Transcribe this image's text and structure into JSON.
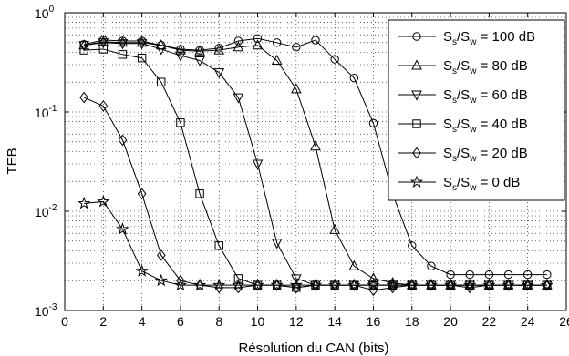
{
  "chart_data": {
    "type": "line",
    "title": "",
    "xlabel": "Résolution du CAN (bits)",
    "ylabel": "TEB",
    "xlim": [
      0,
      26
    ],
    "ylim": [
      0.001,
      1
    ],
    "yscale": "log",
    "grid": true,
    "legend_position": "top-right",
    "x_ticks": [
      "0",
      "2",
      "4",
      "6",
      "8",
      "10",
      "12",
      "14",
      "16",
      "18",
      "20",
      "22",
      "24",
      "26"
    ],
    "y_ticks": [
      {
        "base": "10",
        "exp": "0"
      },
      {
        "base": "10",
        "exp": "-1"
      },
      {
        "base": "10",
        "exp": "-2"
      },
      {
        "base": "10",
        "exp": "-3"
      }
    ],
    "series": [
      {
        "marker": "circle",
        "legend": {
          "s": "S",
          "s_sub": "s",
          "w": "S",
          "w_sub": "w",
          "value": " = 100 dB"
        },
        "x": [
          1,
          2,
          3,
          4,
          5,
          6,
          7,
          8,
          9,
          10,
          11,
          12,
          13,
          14,
          15,
          16,
          17,
          18,
          19,
          20,
          21,
          22,
          23,
          24,
          25
        ],
        "y": [
          0.48,
          0.53,
          0.52,
          0.52,
          0.47,
          0.43,
          0.42,
          0.44,
          0.52,
          0.55,
          0.5,
          0.45,
          0.53,
          0.34,
          0.22,
          0.077,
          0.015,
          0.0045,
          0.0028,
          0.0023,
          0.0023,
          0.0023,
          0.0023,
          0.0023,
          0.0023
        ]
      },
      {
        "marker": "triangle-up",
        "legend": {
          "s": "S",
          "s_sub": "s",
          "w": "S",
          "w_sub": "w",
          "value": " = 80 dB"
        },
        "x": [
          1,
          2,
          3,
          4,
          5,
          6,
          7,
          8,
          9,
          10,
          11,
          12,
          13,
          14,
          15,
          16,
          17,
          18,
          19,
          20,
          21,
          22,
          23,
          24,
          25
        ],
        "y": [
          0.47,
          0.51,
          0.5,
          0.5,
          0.47,
          0.42,
          0.41,
          0.42,
          0.45,
          0.47,
          0.33,
          0.17,
          0.045,
          0.0065,
          0.0028,
          0.0021,
          0.0019,
          0.0018,
          0.0018,
          0.0018,
          0.0018,
          0.0018,
          0.0018,
          0.0018,
          0.0018
        ]
      },
      {
        "marker": "triangle-down",
        "legend": {
          "s": "S",
          "s_sub": "s",
          "w": "S",
          "w_sub": "w",
          "value": " = 60 dB"
        },
        "x": [
          1,
          2,
          3,
          4,
          5,
          6,
          7,
          8,
          9,
          10,
          11,
          12,
          13,
          14,
          15,
          16,
          17,
          18,
          19,
          20,
          21,
          22,
          23,
          24,
          25
        ],
        "y": [
          0.47,
          0.5,
          0.49,
          0.49,
          0.43,
          0.37,
          0.33,
          0.25,
          0.14,
          0.03,
          0.0048,
          0.0021,
          0.0018,
          0.0018,
          0.0018,
          0.0018,
          0.0018,
          0.0018,
          0.0018,
          0.0018,
          0.0018,
          0.0018,
          0.0018,
          0.0018,
          0.0018
        ]
      },
      {
        "marker": "square",
        "legend": {
          "s": "S",
          "s_sub": "s",
          "w": "S",
          "w_sub": "w",
          "value": " = 40 dB"
        },
        "x": [
          1,
          2,
          3,
          4,
          5,
          6,
          7,
          8,
          9,
          10,
          11,
          12,
          13,
          14,
          15,
          16,
          17,
          18,
          19,
          20,
          21,
          22,
          23,
          24,
          25
        ],
        "y": [
          0.42,
          0.43,
          0.38,
          0.35,
          0.2,
          0.078,
          0.015,
          0.0045,
          0.0021,
          0.0018,
          0.0018,
          0.0017,
          0.0018,
          0.0018,
          0.0018,
          0.0018,
          0.0018,
          0.0018,
          0.0018,
          0.0018,
          0.0018,
          0.0018,
          0.0018,
          0.0018,
          0.0018
        ]
      },
      {
        "marker": "diamond",
        "legend": {
          "s": "S",
          "s_sub": "s",
          "w": "S",
          "w_sub": "w",
          "value": " = 20 dB"
        },
        "x": [
          1,
          2,
          3,
          4,
          5,
          6,
          7,
          8,
          9,
          10,
          11,
          12,
          13,
          14,
          15,
          16,
          17,
          18,
          19,
          20,
          21,
          22,
          23,
          24,
          25
        ],
        "y": [
          0.14,
          0.115,
          0.052,
          0.015,
          0.0036,
          0.002,
          0.0018,
          0.0017,
          0.0017,
          0.0018,
          0.0018,
          0.0017,
          0.0018,
          0.0018,
          0.0018,
          0.0016,
          0.0017,
          0.0018,
          0.0018,
          0.0018,
          0.0017,
          0.0018,
          0.0018,
          0.0018,
          0.0018
        ]
      },
      {
        "marker": "star",
        "legend": {
          "s": "S",
          "s_sub": "s",
          "w": "S",
          "w_sub": "w",
          "value": " = 0 dB"
        },
        "x": [
          1,
          2,
          3,
          4,
          5,
          6,
          7,
          8,
          9,
          10,
          11,
          12,
          13,
          14,
          15,
          16,
          17,
          18,
          19,
          20,
          21,
          22,
          23,
          24,
          25
        ],
        "y": [
          0.012,
          0.0125,
          0.0066,
          0.0025,
          0.002,
          0.0018,
          0.0018,
          0.0018,
          0.0018,
          0.0018,
          0.0018,
          0.0018,
          0.0018,
          0.0018,
          0.0018,
          0.0018,
          0.0018,
          0.0018,
          0.0018,
          0.0018,
          0.0018,
          0.0018,
          0.0018,
          0.0018,
          0.0018
        ]
      }
    ]
  }
}
